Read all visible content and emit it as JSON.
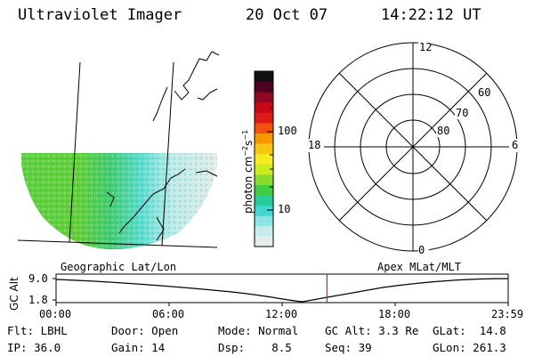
{
  "header": {
    "instrument": "Ultraviolet Imager",
    "date": "20 Oct 07",
    "time": "14:22:12 UT"
  },
  "colorbar": {
    "unit_label": "photon cm",
    "unit_exp1": "−2",
    "unit_mid": "s",
    "unit_exp2": "−1",
    "ticks": [
      "100",
      "10"
    ],
    "colors": [
      "#e8ecec",
      "#c8ecec",
      "#8ee4e4",
      "#40d8d0",
      "#28cc98",
      "#40cc40",
      "#88dc30",
      "#ccec20",
      "#f4ec20",
      "#f8c810",
      "#f89800",
      "#f05010",
      "#e01818",
      "#c80818",
      "#900820",
      "#500020",
      "#101010"
    ]
  },
  "polar_grid": {
    "mlt_labels": [
      "12",
      "18",
      "6",
      "0"
    ],
    "lat_labels": [
      "60",
      "70",
      "80"
    ]
  },
  "map_labels": {
    "left": "Geographic Lat/Lon",
    "right": "Apex MLat/MLT"
  },
  "timeline": {
    "y_axis_label": "GC Alt",
    "y_ticks": [
      "9.0",
      "1.8"
    ],
    "x_ticks": [
      "00:00",
      "06:00",
      "12:00",
      "18:00",
      "23:59"
    ],
    "current_time_marker": "14:22:12",
    "accent_color": "#e02020"
  },
  "status": {
    "flt_label": "Flt:",
    "flt_value": "LBHL",
    "door_label": "Door:",
    "door_value": "Open",
    "mode_label": "Mode:",
    "mode_value": "Normal",
    "gcalt_label": "GC Alt:",
    "gcalt_value": "3.3 Re",
    "glat_label": "GLat:",
    "glat_value": "14.8",
    "ip_label": "IP:",
    "ip_value": "36.0",
    "gain_label": "Gain:",
    "gain_value": "14",
    "dsp_label": "Dsp:",
    "dsp_value": "8.5",
    "seq_label": "Seq:",
    "seq_value": "39",
    "glon_label": "GLon:",
    "glon_value": "261.3"
  }
}
